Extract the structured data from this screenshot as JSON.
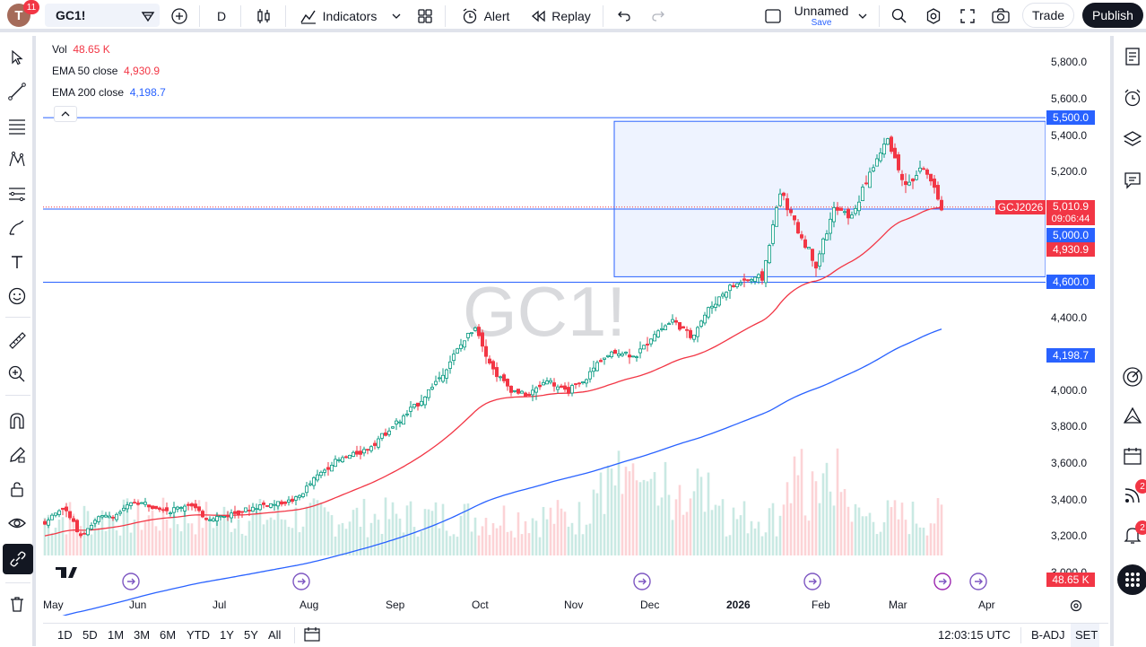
{
  "header": {
    "avatar_letter": "T",
    "notification_count": "11",
    "symbol": "GC1!",
    "interval": "D",
    "indicators_label": "Indicators",
    "alert_label": "Alert",
    "replay_label": "Replay",
    "layout_name": "Unnamed",
    "layout_save": "Save",
    "trade_label": "Trade",
    "publish_label": "Publish"
  },
  "legend": {
    "vol_label": "Vol",
    "vol_value": "48.65 K",
    "ema50_label": "EMA 50 close",
    "ema50_value": "4,930.9",
    "ema200_label": "EMA 200 close",
    "ema200_value": "4,198.7"
  },
  "watermark": "GC1!",
  "price_axis": {
    "ticks": [
      "5,800.0",
      "5,600.0",
      "5,400.0",
      "5,200.0",
      "4,400.0",
      "4,000.0",
      "3,800.0",
      "3,600.0",
      "3,400.0",
      "3,200.0",
      "3,000.0"
    ],
    "tags": {
      "level_high": "5,500.0",
      "symbol_tag": "GCJ2026",
      "last_price": "5,010.9",
      "countdown": "09:06:44",
      "level_mid": "5,000.0",
      "ema50": "4,930.9",
      "level_low": "4,600.0",
      "ema200": "4,198.7",
      "volume": "48.65 K"
    }
  },
  "time_axis": [
    "May",
    "Jun",
    "Jul",
    "Aug",
    "Sep",
    "Oct",
    "Nov",
    "Dec",
    "2026",
    "Feb",
    "Mar",
    "Apr"
  ],
  "bottom": {
    "ranges": [
      "1D",
      "5D",
      "1M",
      "3M",
      "6M",
      "YTD",
      "1Y",
      "5Y",
      "All"
    ],
    "clock": "12:03:15 UTC",
    "adj": "B-ADJ",
    "session": "SET"
  },
  "right_badges": {
    "signals": "2",
    "notifications": "2"
  },
  "colors": {
    "up": "#089981",
    "down": "#f23645",
    "ema50": "#f23645",
    "ema200": "#2962ff",
    "levels": "#2962ff"
  },
  "chart_data": {
    "type": "candlestick",
    "x_range": [
      "May",
      "Apr"
    ],
    "ylim": [
      3000,
      5900
    ],
    "closes_weekly": [
      3290,
      3370,
      3220,
      3310,
      3330,
      3400,
      3380,
      3350,
      3390,
      3310,
      3320,
      3350,
      3380,
      3390,
      3410,
      3520,
      3610,
      3650,
      3690,
      3780,
      3860,
      3960,
      4080,
      4230,
      4360,
      4120,
      4010,
      3980,
      4070,
      4000,
      4050,
      4180,
      4220,
      4200,
      4320,
      4390,
      4300,
      4450,
      4560,
      4610,
      4620,
      5100,
      4880,
      4700,
      5000,
      4960,
      5200,
      5380,
      5120,
      5230,
      5010
    ],
    "ema50_end": 4930.9,
    "ema200_end": 4198.7,
    "horizontal_levels": [
      5500,
      5000,
      4600
    ],
    "last_price": 5010.9
  }
}
